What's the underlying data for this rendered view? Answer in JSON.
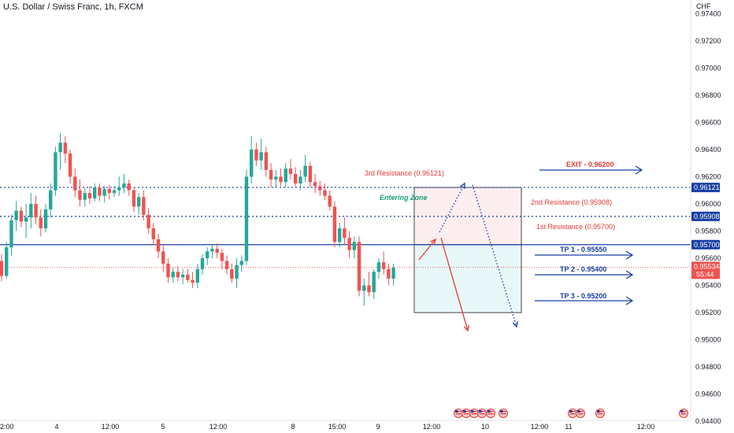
{
  "chart_data": {
    "type": "candlestick",
    "title": "U.S. Dollar / Swiss Franc, 1h, FXCM",
    "currency": "CHF",
    "ylim": [
      0.9432,
      0.975
    ],
    "y_ticks": [
      "0.97400",
      "0.97200",
      "0.97000",
      "0.96800",
      "0.96600",
      "0.96400",
      "0.96200",
      "0.96000",
      "0.95800",
      "0.95600",
      "0.95400",
      "0.95200",
      "0.95000",
      "0.94800",
      "0.94600",
      "0.94400"
    ],
    "x_ticks": [
      "2:00",
      "4",
      "12:00",
      "5",
      "12:00",
      "8",
      "15:00",
      "9",
      "12:00",
      "10",
      "12:00",
      "11",
      "12:00"
    ],
    "up_color": "#26a69a",
    "down_color": "#ef5350",
    "candles": [
      [
        0.9558,
        0.9563,
        0.9543,
        0.9547
      ],
      [
        0.9547,
        0.9572,
        0.9545,
        0.9568
      ],
      [
        0.9568,
        0.9592,
        0.9562,
        0.9588
      ],
      [
        0.9588,
        0.9602,
        0.958,
        0.9595
      ],
      [
        0.9595,
        0.9598,
        0.9583,
        0.9587
      ],
      [
        0.9587,
        0.96,
        0.9575,
        0.959
      ],
      [
        0.959,
        0.9608,
        0.9582,
        0.96
      ],
      [
        0.96,
        0.9606,
        0.9585,
        0.959
      ],
      [
        0.959,
        0.9596,
        0.9576,
        0.9582
      ],
      [
        0.9582,
        0.96,
        0.9579,
        0.9596
      ],
      [
        0.9596,
        0.9615,
        0.959,
        0.961
      ],
      [
        0.961,
        0.9642,
        0.9606,
        0.9638
      ],
      [
        0.9638,
        0.9652,
        0.9625,
        0.9645
      ],
      [
        0.9645,
        0.965,
        0.963,
        0.9637
      ],
      [
        0.9637,
        0.964,
        0.9615,
        0.962
      ],
      [
        0.962,
        0.9626,
        0.9605,
        0.961
      ],
      [
        0.961,
        0.9618,
        0.9598,
        0.9603
      ],
      [
        0.9603,
        0.9612,
        0.9598,
        0.9608
      ],
      [
        0.9608,
        0.9613,
        0.96,
        0.9604
      ],
      [
        0.9604,
        0.9615,
        0.9602,
        0.9612
      ],
      [
        0.9612,
        0.9615,
        0.9602,
        0.9606
      ],
      [
        0.9606,
        0.9613,
        0.9601,
        0.9611
      ],
      [
        0.9611,
        0.9614,
        0.9603,
        0.9608
      ],
      [
        0.9608,
        0.9613,
        0.9605,
        0.961
      ],
      [
        0.961,
        0.962,
        0.9606,
        0.9612
      ],
      [
        0.9612,
        0.9622,
        0.9608,
        0.9615
      ],
      [
        0.9615,
        0.9618,
        0.9606,
        0.961
      ],
      [
        0.961,
        0.9612,
        0.9594,
        0.9598
      ],
      [
        0.9598,
        0.9608,
        0.9592,
        0.9605
      ],
      [
        0.9605,
        0.961,
        0.9588,
        0.9592
      ],
      [
        0.9592,
        0.9597,
        0.9578,
        0.9582
      ],
      [
        0.9582,
        0.9586,
        0.957,
        0.9574
      ],
      [
        0.9574,
        0.9578,
        0.956,
        0.9565
      ],
      [
        0.9565,
        0.957,
        0.955,
        0.9556
      ],
      [
        0.9556,
        0.956,
        0.9542,
        0.9546
      ],
      [
        0.9546,
        0.9553,
        0.9542,
        0.955
      ],
      [
        0.955,
        0.9554,
        0.9543,
        0.9546
      ],
      [
        0.9546,
        0.9552,
        0.9541,
        0.9548
      ],
      [
        0.9548,
        0.9552,
        0.9542,
        0.9544
      ],
      [
        0.9544,
        0.955,
        0.9538,
        0.9542
      ],
      [
        0.9542,
        0.9556,
        0.9538,
        0.9552
      ],
      [
        0.9552,
        0.9563,
        0.9548,
        0.956
      ],
      [
        0.956,
        0.9568,
        0.9555,
        0.9565
      ],
      [
        0.9565,
        0.957,
        0.956,
        0.9567
      ],
      [
        0.9567,
        0.9571,
        0.956,
        0.9564
      ],
      [
        0.9564,
        0.9567,
        0.9552,
        0.9558
      ],
      [
        0.9558,
        0.9562,
        0.9548,
        0.9552
      ],
      [
        0.9552,
        0.9556,
        0.9542,
        0.9545
      ],
      [
        0.9545,
        0.956,
        0.9538,
        0.9555
      ],
      [
        0.9555,
        0.9562,
        0.955,
        0.9558
      ],
      [
        0.9558,
        0.9625,
        0.9555,
        0.962
      ],
      [
        0.962,
        0.965,
        0.9615,
        0.964
      ],
      [
        0.964,
        0.9645,
        0.9628,
        0.9632
      ],
      [
        0.9632,
        0.9648,
        0.9625,
        0.9638
      ],
      [
        0.9638,
        0.9642,
        0.962,
        0.9625
      ],
      [
        0.9625,
        0.963,
        0.9612,
        0.9618
      ],
      [
        0.9618,
        0.9625,
        0.9612,
        0.962
      ],
      [
        0.962,
        0.9626,
        0.9613,
        0.9616
      ],
      [
        0.9616,
        0.963,
        0.9612,
        0.9626
      ],
      [
        0.9626,
        0.9633,
        0.9618,
        0.9622
      ],
      [
        0.9622,
        0.9627,
        0.9612,
        0.9615
      ],
      [
        0.9615,
        0.9625,
        0.961,
        0.962
      ],
      [
        0.962,
        0.9636,
        0.9616,
        0.9628
      ],
      [
        0.9628,
        0.9631,
        0.9612,
        0.9616
      ],
      [
        0.9616,
        0.9622,
        0.9608,
        0.9613
      ],
      [
        0.9613,
        0.9617,
        0.9606,
        0.961
      ],
      [
        0.961,
        0.9615,
        0.9603,
        0.9606
      ],
      [
        0.9606,
        0.961,
        0.9595,
        0.9598
      ],
      [
        0.9598,
        0.9602,
        0.9568,
        0.9572
      ],
      [
        0.9572,
        0.9586,
        0.9568,
        0.9582
      ],
      [
        0.9582,
        0.959,
        0.957,
        0.9575
      ],
      [
        0.9575,
        0.958,
        0.956,
        0.9566
      ],
      [
        0.9566,
        0.9576,
        0.956,
        0.9572
      ],
      [
        0.9572,
        0.9576,
        0.9532,
        0.9536
      ],
      [
        0.9536,
        0.9545,
        0.9525,
        0.954
      ],
      [
        0.954,
        0.955,
        0.9532,
        0.9535
      ],
      [
        0.9535,
        0.9552,
        0.953,
        0.955
      ],
      [
        0.955,
        0.956,
        0.9545,
        0.9557
      ],
      [
        0.9557,
        0.9565,
        0.9548,
        0.9552
      ],
      [
        0.9552,
        0.9556,
        0.954,
        0.9545
      ],
      [
        0.9545,
        0.9556,
        0.954,
        0.9553
      ]
    ],
    "levels": [
      {
        "label": "3rd Resistance (0.96121)",
        "value": 0.96121,
        "tag": "0.96121",
        "style": "dotted"
      },
      {
        "label": "2nd Resistance (0.95908)",
        "value": 0.95908,
        "tag": "0.95908",
        "style": "dotted"
      },
      {
        "label": "1st Resistance (0.95700)",
        "value": 0.957,
        "tag": "0.95700",
        "style": "solid"
      }
    ],
    "current_price": {
      "value": 0.95534,
      "tag": "0.95534",
      "countdown": "55:44"
    },
    "annotations": {
      "entering_zone": "Entering Zone",
      "exit": "EXIT - 0.96200",
      "tp1": "TP 1 - 0.95550",
      "tp2": "TP 2 - 0.95400",
      "tp3": "TP 3 - 0.95200"
    },
    "colors": {
      "level_line": "#1a3fa3",
      "tag_bg": "#1a3fa3",
      "price_tag_bg": "#ef5350",
      "zone_top_fill": "#fdeef0",
      "zone_bottom_fill": "#e8f7f7",
      "arrow_red": "#e53935",
      "arrow_blue": "#1a3fa3"
    }
  }
}
